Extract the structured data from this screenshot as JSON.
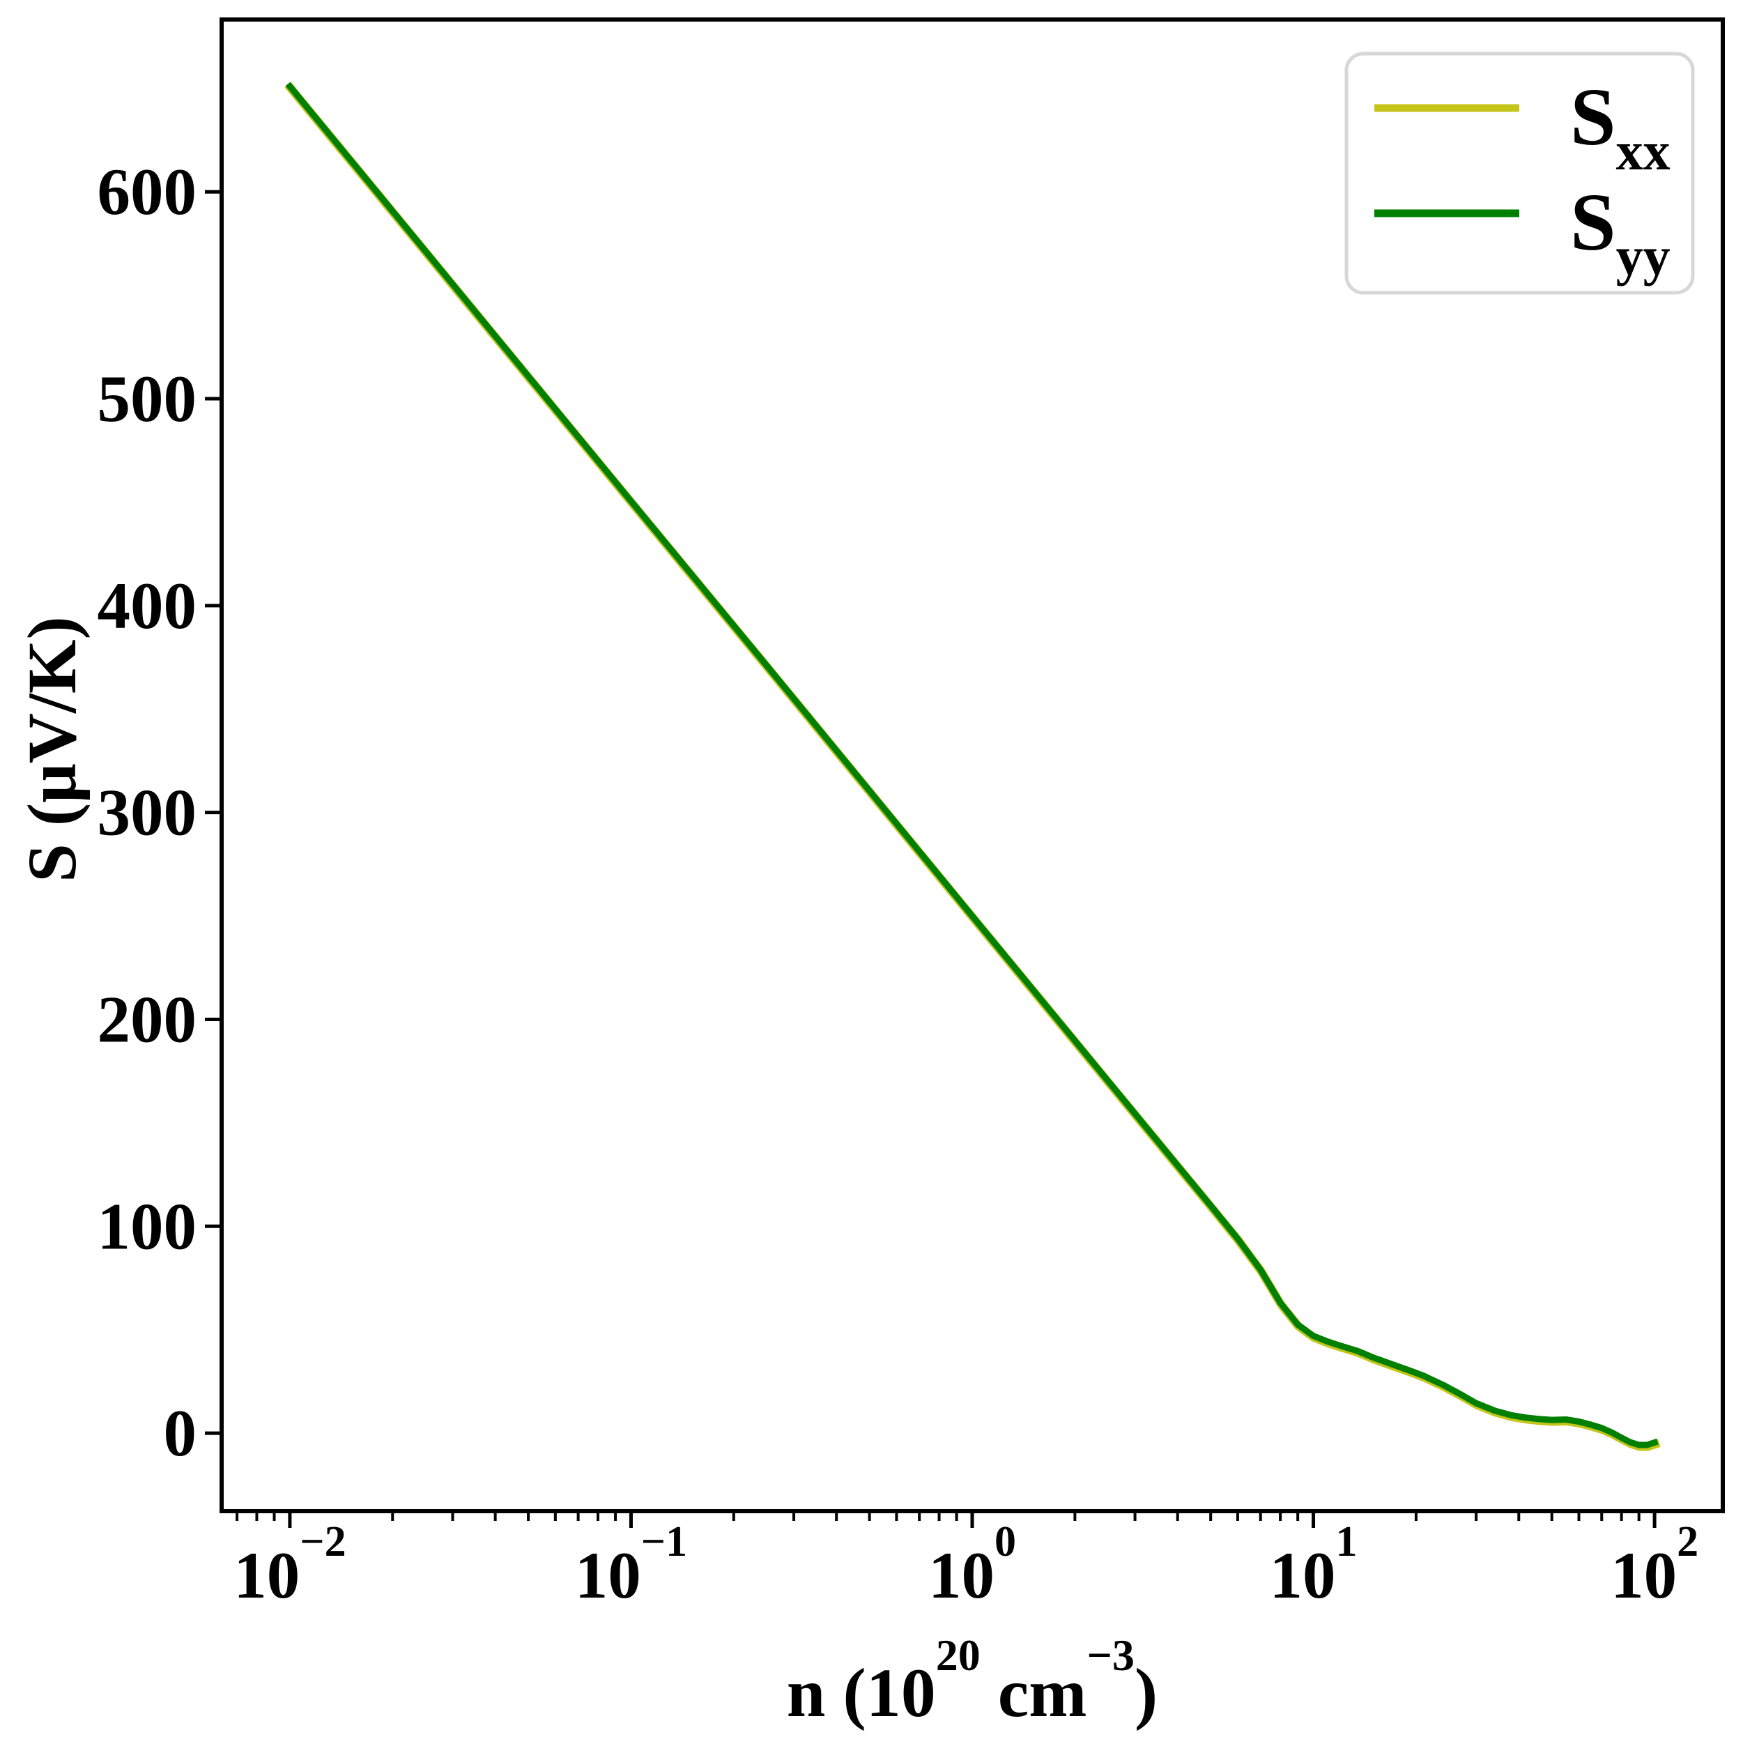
{
  "chart_data": {
    "type": "line",
    "title": "",
    "xscale": "log",
    "yscale": "linear",
    "xlabel_plain": "n (10^20 cm^-3)",
    "xlabel_segments": [
      {
        "t": "n (10",
        "sup": false
      },
      {
        "t": "20",
        "sup": true
      },
      {
        "t": " cm",
        "sup": false
      },
      {
        "t": "−3",
        "sup": true
      },
      {
        "t": ")",
        "sup": false
      }
    ],
    "ylabel": "S (μV/K)",
    "xlim_log10": [
      -2.2,
      2.2
    ],
    "ylim": [
      -37.7,
      683.3
    ],
    "grid": false,
    "x_major_ticks": [
      {
        "value_log10": -2,
        "base": "10",
        "exp": "−2"
      },
      {
        "value_log10": -1,
        "base": "10",
        "exp": "−1"
      },
      {
        "value_log10": 0,
        "base": "10",
        "exp": "0"
      },
      {
        "value_log10": 1,
        "base": "10",
        "exp": "1"
      },
      {
        "value_log10": 2,
        "base": "10",
        "exp": "2"
      }
    ],
    "x_minor_tick_decades": [
      -3,
      -2,
      -1,
      0,
      1,
      2
    ],
    "y_ticks": [
      {
        "value": 0,
        "label": "0"
      },
      {
        "value": 100,
        "label": "100"
      },
      {
        "value": 200,
        "label": "200"
      },
      {
        "value": 300,
        "label": "300"
      },
      {
        "value": 400,
        "label": "400"
      },
      {
        "value": 500,
        "label": "500"
      },
      {
        "value": 600,
        "label": "600"
      }
    ],
    "x": [
      0.01,
      0.0158,
      0.0251,
      0.0398,
      0.0631,
      0.1,
      0.158,
      0.251,
      0.398,
      0.631,
      1,
      1.58,
      2.51,
      3.98,
      5,
      6,
      7,
      8,
      9,
      10,
      11,
      12,
      13.5,
      15,
      17,
      19,
      21,
      24,
      27,
      30,
      34,
      38,
      42,
      46,
      50,
      55,
      60,
      65,
      70,
      75,
      80,
      85,
      90,
      95,
      100
    ],
    "series": [
      {
        "name": "S_xx",
        "color": "#c4c419",
        "values": [
          651,
          611.2,
          570.9,
          530.7,
          490.6,
          450.5,
          410.8,
          370.6,
          330.4,
          290.2,
          250,
          210.2,
          169.9,
          129.8,
          110,
          94,
          79,
          63,
          52.5,
          47,
          44.3,
          42.3,
          39.7,
          36.5,
          33.3,
          30.5,
          27.8,
          23.3,
          18.8,
          14.5,
          10.9,
          8.7,
          7.5,
          6.8,
          6.4,
          6.6,
          5.6,
          4.1,
          2.5,
          0.3,
          -2.2,
          -4.4,
          -5.7,
          -5.7,
          -4.5
        ]
      },
      {
        "name": "S_yy",
        "color": "#008000",
        "values": [
          651,
          611.2,
          570.9,
          530.7,
          490.6,
          450.5,
          410.8,
          370.6,
          330.4,
          290.2,
          250,
          210.2,
          169.9,
          129.8,
          110,
          94,
          79,
          63,
          52.5,
          47,
          44.3,
          42.3,
          39.7,
          36.5,
          33.3,
          30.5,
          27.8,
          23.3,
          18.8,
          14.5,
          10.9,
          8.7,
          7.5,
          6.8,
          6.4,
          6.6,
          5.6,
          4.1,
          2.5,
          0.3,
          -2.2,
          -4.4,
          -5.7,
          -5.7,
          -4.5
        ]
      }
    ],
    "legend": {
      "position": "upper right",
      "items": [
        {
          "main": "S",
          "sub": "xx",
          "color": "#c4c419"
        },
        {
          "main": "S",
          "sub": "yy",
          "color": "#008000"
        }
      ]
    },
    "colors": {
      "axis": "#000000",
      "legend_border": "#d7d7d7",
      "background": "#ffffff"
    }
  }
}
